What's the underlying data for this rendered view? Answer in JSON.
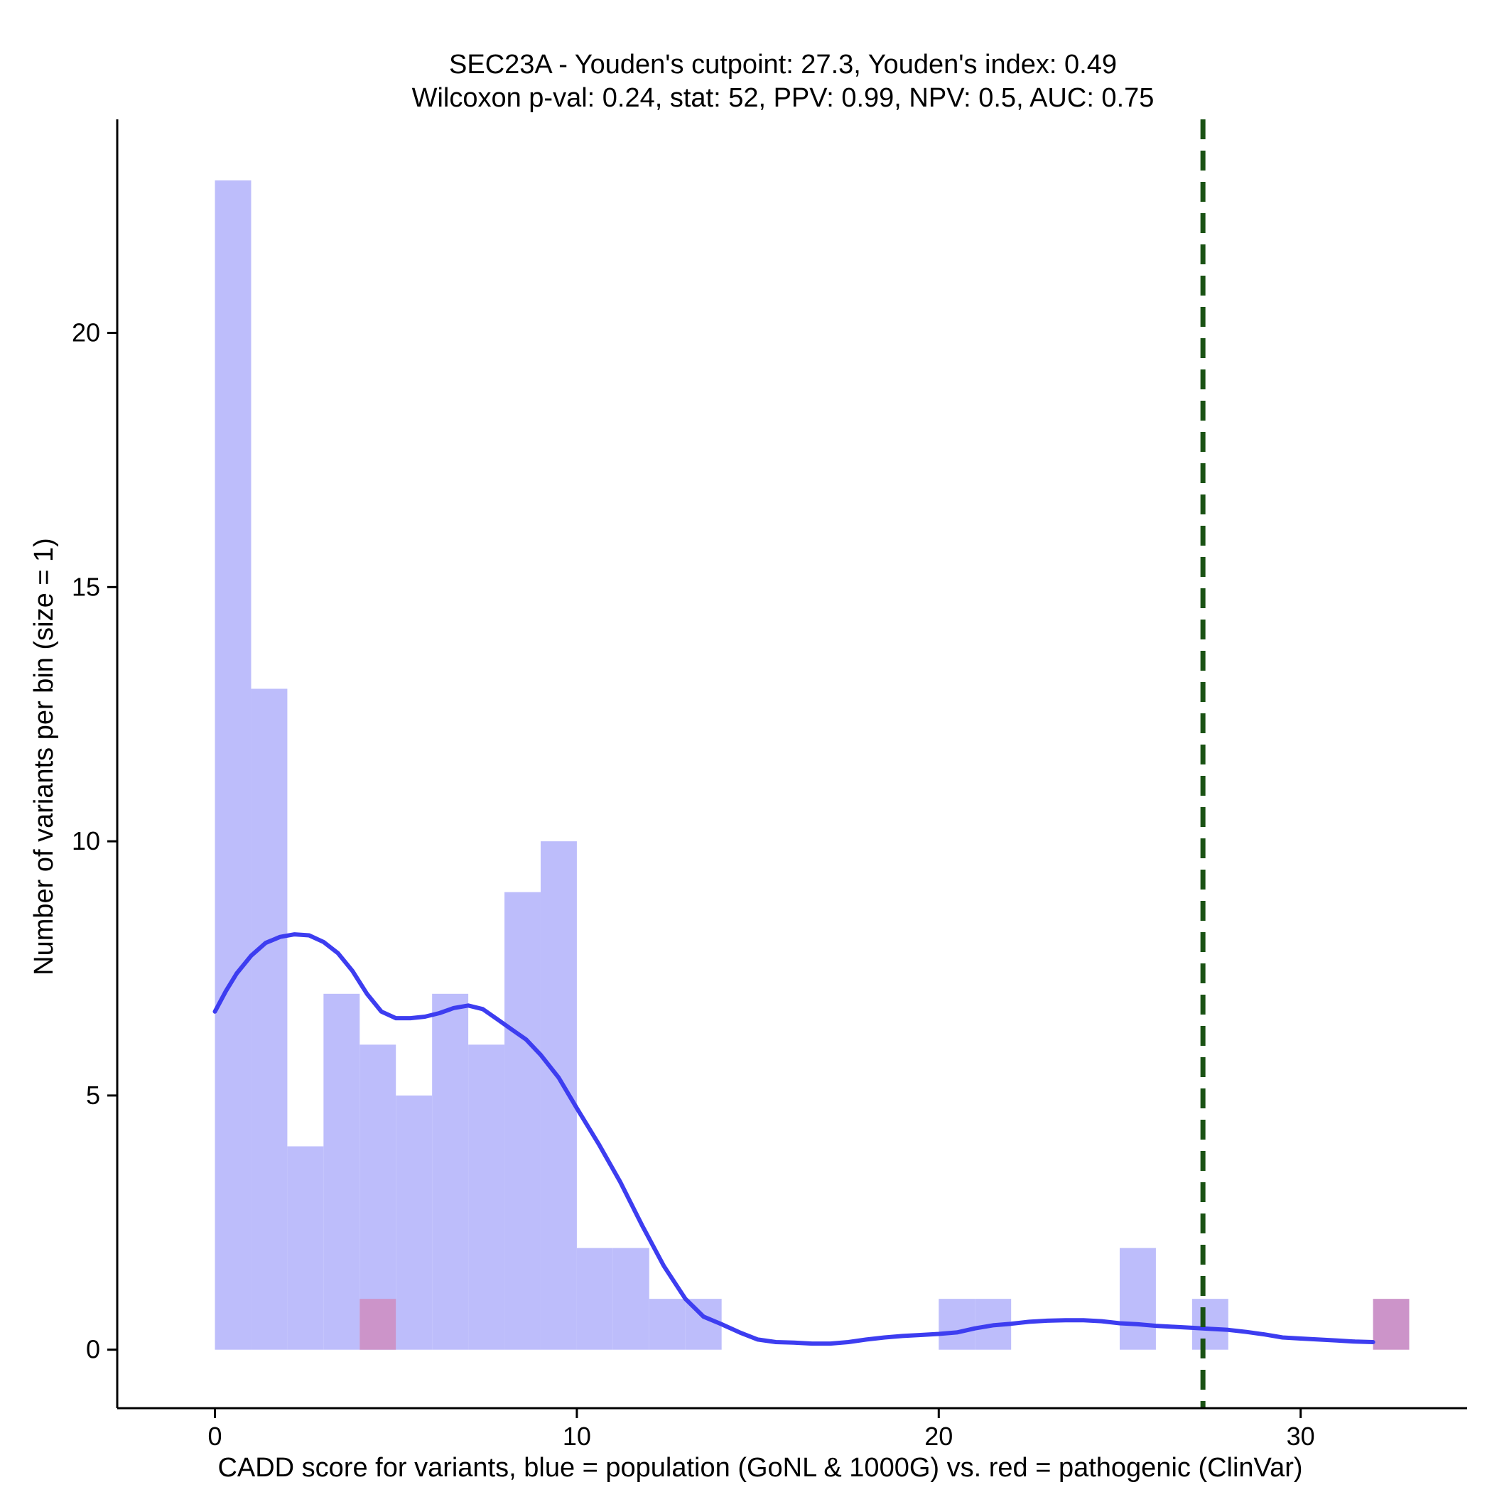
{
  "chart_data": {
    "type": "histogram",
    "title_lines": [
      "SEC23A - Youden's cutpoint: 27.3, Youden's index: 0.49",
      "Wilcoxon p-val: 0.24, stat: 52, PPV: 0.99, NPV: 0.5, AUC: 0.75"
    ],
    "xlabel": "CADD score for variants, blue = population (GoNL & 1000G) vs. red = pathogenic (ClinVar)",
    "ylabel": "Number of variants per bin (size = 1)",
    "xlim": [
      -2.7,
      34.6
    ],
    "ylim": [
      -1.15,
      24.2
    ],
    "x_ticks": [
      0,
      10,
      20,
      30
    ],
    "y_ticks": [
      0,
      5,
      10,
      15,
      20
    ],
    "bin_width": 1,
    "series": [
      {
        "name": "population (GoNL & 1000G)",
        "color": "#bdbdfb",
        "bins": [
          {
            "x": 0,
            "count": 23
          },
          {
            "x": 1,
            "count": 13
          },
          {
            "x": 2,
            "count": 4
          },
          {
            "x": 3,
            "count": 7
          },
          {
            "x": 4,
            "count": 6
          },
          {
            "x": 5,
            "count": 5
          },
          {
            "x": 6,
            "count": 7
          },
          {
            "x": 7,
            "count": 6
          },
          {
            "x": 8,
            "count": 9
          },
          {
            "x": 9,
            "count": 10
          },
          {
            "x": 10,
            "count": 2
          },
          {
            "x": 11,
            "count": 2
          },
          {
            "x": 12,
            "count": 1
          },
          {
            "x": 13,
            "count": 1
          },
          {
            "x": 20,
            "count": 1
          },
          {
            "x": 21,
            "count": 1
          },
          {
            "x": 25,
            "count": 2
          },
          {
            "x": 27,
            "count": 1
          }
        ]
      },
      {
        "name": "pathogenic (ClinVar)",
        "color": "#cc94c9",
        "bins": [
          {
            "x": 4,
            "count": 1
          },
          {
            "x": 32,
            "count": 1
          }
        ]
      }
    ],
    "density_curve": {
      "color": "#3d3df0",
      "points": [
        [
          0,
          6.65
        ],
        [
          0.3,
          7.05
        ],
        [
          0.6,
          7.4
        ],
        [
          1.0,
          7.75
        ],
        [
          1.4,
          8.0
        ],
        [
          1.8,
          8.12
        ],
        [
          2.2,
          8.17
        ],
        [
          2.6,
          8.15
        ],
        [
          3.0,
          8.02
        ],
        [
          3.4,
          7.8
        ],
        [
          3.8,
          7.45
        ],
        [
          4.2,
          7.0
        ],
        [
          4.6,
          6.65
        ],
        [
          5.0,
          6.52
        ],
        [
          5.4,
          6.52
        ],
        [
          5.8,
          6.55
        ],
        [
          6.2,
          6.62
        ],
        [
          6.6,
          6.72
        ],
        [
          7.0,
          6.77
        ],
        [
          7.4,
          6.7
        ],
        [
          7.8,
          6.5
        ],
        [
          8.2,
          6.3
        ],
        [
          8.6,
          6.1
        ],
        [
          9.0,
          5.8
        ],
        [
          9.5,
          5.35
        ],
        [
          10.0,
          4.75
        ],
        [
          10.6,
          4.05
        ],
        [
          11.2,
          3.3
        ],
        [
          11.8,
          2.45
        ],
        [
          12.4,
          1.65
        ],
        [
          13.0,
          1.0
        ],
        [
          13.5,
          0.65
        ],
        [
          14.0,
          0.5
        ],
        [
          14.5,
          0.34
        ],
        [
          15.0,
          0.2
        ],
        [
          15.5,
          0.15
        ],
        [
          16.0,
          0.14
        ],
        [
          16.5,
          0.12
        ],
        [
          17.0,
          0.12
        ],
        [
          17.5,
          0.15
        ],
        [
          18.0,
          0.2
        ],
        [
          18.5,
          0.24
        ],
        [
          19.0,
          0.27
        ],
        [
          19.5,
          0.29
        ],
        [
          20.0,
          0.31
        ],
        [
          20.5,
          0.34
        ],
        [
          21.0,
          0.42
        ],
        [
          21.5,
          0.48
        ],
        [
          22.0,
          0.51
        ],
        [
          22.5,
          0.55
        ],
        [
          23.0,
          0.57
        ],
        [
          23.5,
          0.58
        ],
        [
          24.0,
          0.58
        ],
        [
          24.5,
          0.56
        ],
        [
          25.0,
          0.52
        ],
        [
          25.5,
          0.5
        ],
        [
          26.0,
          0.47
        ],
        [
          26.5,
          0.45
        ],
        [
          27.0,
          0.43
        ],
        [
          27.5,
          0.41
        ],
        [
          28.0,
          0.39
        ],
        [
          28.5,
          0.35
        ],
        [
          29.0,
          0.3
        ],
        [
          29.5,
          0.24
        ],
        [
          30.0,
          0.22
        ],
        [
          30.5,
          0.2
        ],
        [
          31.0,
          0.18
        ],
        [
          31.5,
          0.16
        ],
        [
          32.0,
          0.15
        ]
      ]
    },
    "cutpoint": {
      "x": 27.3,
      "color": "#1a5214",
      "style": "dashed"
    }
  }
}
